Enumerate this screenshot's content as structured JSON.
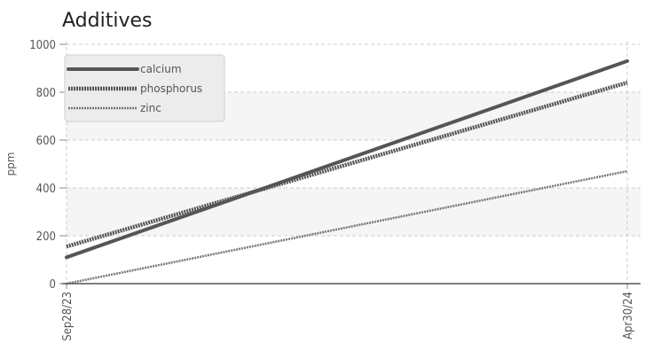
{
  "chart_data": {
    "type": "line",
    "title": "Additives",
    "xlabel": "",
    "ylabel": "ppm",
    "x": [
      "Sep28/23",
      "Apr30/24"
    ],
    "ylim": [
      0,
      1000
    ],
    "yticks": [
      0,
      200,
      400,
      600,
      800,
      1000
    ],
    "grid": true,
    "legend_position": "top-left",
    "series": [
      {
        "name": "calcium",
        "values": [
          110,
          930
        ],
        "color": "#555555",
        "style": "solid"
      },
      {
        "name": "phosphorus",
        "values": [
          155,
          840
        ],
        "color": "#555555",
        "style": "dotted-heavy"
      },
      {
        "name": "zinc",
        "values": [
          0,
          470
        ],
        "color": "#777777",
        "style": "dotted-light"
      }
    ]
  }
}
